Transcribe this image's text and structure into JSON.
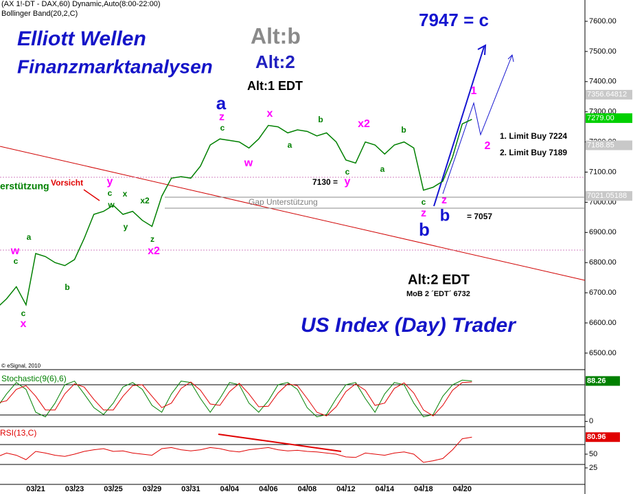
{
  "header": [
    "(AX 1!-DT - DAX,60) Dynamic,Auto(8:00-22:00)",
    "Bollinger Band(20,2,C)"
  ],
  "chart_data": [
    {
      "type": "line",
      "title": "Elliott Wellen",
      "categories": [
        null,
        null,
        null,
        null,
        "03/21",
        null,
        null,
        null,
        "03/23",
        null,
        null,
        null,
        "03/25",
        null,
        null,
        null,
        "03/29",
        null,
        null,
        null,
        "03/31",
        null,
        null,
        null,
        "04/04",
        null,
        null,
        null,
        "04/06",
        null,
        null,
        null,
        "04/08",
        null,
        null,
        null,
        "04/12",
        null,
        null,
        null,
        "04/14",
        null,
        null,
        null,
        "04/18",
        null,
        null,
        null,
        "04/20",
        null
      ],
      "series": [
        {
          "color": "#008000",
          "values": [
            6650,
            6680,
            6720,
            6660,
            6830,
            6820,
            6800,
            6790,
            6810,
            6880,
            6960,
            6970,
            6990,
            6960,
            6970,
            6940,
            6920,
            7020,
            7080,
            7085,
            7080,
            7120,
            7190,
            7210,
            7205,
            7200,
            7180,
            7210,
            7255,
            7250,
            7230,
            7240,
            7235,
            7220,
            7230,
            7200,
            7140,
            7130,
            7200,
            7190,
            7160,
            7190,
            7200,
            7180,
            7040,
            7050,
            7070,
            7150,
            7260,
            7275
          ]
        }
      ],
      "ylim": [
        6447.4,
        7670.6
      ],
      "yticks": [
        {
          "value": 6500,
          "label": "6500.00"
        },
        {
          "value": 6600,
          "label": "6600.00"
        },
        {
          "value": 6700,
          "label": "6700.00"
        },
        {
          "value": 6800,
          "label": "6800.00"
        },
        {
          "value": 6900,
          "label": "6900.00"
        },
        {
          "value": 7000,
          "label": "7000.00"
        },
        {
          "value": 7100,
          "label": "7100.00"
        },
        {
          "value": 7200,
          "label": "7200.00"
        },
        {
          "value": 7300,
          "label": "7300.00"
        },
        {
          "value": 7400,
          "label": "7400.00"
        },
        {
          "value": 7500,
          "label": "7500.00"
        },
        {
          "value": 7600,
          "label": "7600.00"
        }
      ],
      "price_tags": [
        {
          "value": 7356.64812,
          "label": "7356.64812",
          "color": "#c8c8c8"
        },
        {
          "value": 7279,
          "label": "7279.00",
          "color": "#00d000"
        },
        {
          "value": 7188.85,
          "label": "7188.85",
          "color": "#c8c8c8"
        },
        {
          "value": 7021.05188,
          "label": "7021.05188",
          "color": "#c8c8c8"
        }
      ],
      "annotations": [
        {
          "text": "Finanzmarktanalysen",
          "color": "#1414c8"
        },
        {
          "text": "Alt:b",
          "color": "#8a8a8a"
        },
        {
          "text": "Alt:2",
          "color": "#2020c0"
        },
        {
          "text": "Alt:1 EDT",
          "color": "#000000"
        },
        {
          "text": "7947 = c",
          "color": "#1414d0"
        },
        {
          "text": "1. Limit Buy 7224",
          "color": "#000000"
        },
        {
          "text": "2. Limit Buy 7189",
          "color": "#000000"
        },
        {
          "text": "7130 =",
          "color": "#000000"
        },
        {
          "text": "= 7057",
          "color": "#000000"
        },
        {
          "text": "Gap Unterstützung",
          "color": "#808080"
        },
        {
          "text": "erstützung",
          "color": "#008000"
        },
        {
          "text": "Vorsicht",
          "color": "#e00000"
        },
        {
          "text": "Alt:2 EDT",
          "color": "#000000"
        },
        {
          "text": "MoB 2 ´EDT´ 6732",
          "color": "#000000"
        },
        {
          "text": "US Index (Day) Trader",
          "color": "#1414c8"
        },
        {
          "text": "© eSignal, 2010",
          "color": "#000000"
        }
      ],
      "waves": [
        "a",
        "z",
        "c",
        "x",
        "w",
        "a",
        "b",
        "x2",
        "c",
        "y",
        "b",
        "a",
        "c",
        "z",
        "b",
        "z",
        "b",
        "1",
        "2",
        "y",
        "c",
        "x",
        "x2",
        "w",
        "y",
        "z",
        "x2",
        "a",
        "w",
        "c",
        "b",
        "c",
        "x"
      ]
    },
    {
      "type": "line",
      "title": "Stochastic(9(6),6)",
      "series": [
        {
          "color": "#008000",
          "values": [
            30,
            60,
            85,
            70,
            20,
            10,
            40,
            80,
            88,
            60,
            30,
            15,
            40,
            75,
            85,
            70,
            35,
            20,
            60,
            88,
            85,
            50,
            20,
            50,
            85,
            80,
            40,
            20,
            45,
            80,
            85,
            70,
            30,
            10,
            15,
            50,
            80,
            85,
            50,
            20,
            60,
            85,
            80,
            40,
            10,
            15,
            55,
            80,
            90,
            88.26
          ],
          "last_label": "88.26"
        },
        {
          "color": "#e00000",
          "values": [
            40,
            45,
            70,
            78,
            55,
            25,
            25,
            60,
            82,
            75,
            48,
            25,
            25,
            55,
            78,
            80,
            55,
            30,
            40,
            72,
            86,
            68,
            38,
            35,
            65,
            83,
            60,
            32,
            33,
            62,
            82,
            78,
            50,
            20,
            12,
            32,
            65,
            82,
            68,
            35,
            40,
            72,
            84,
            62,
            25,
            12,
            35,
            68,
            85,
            86
          ]
        }
      ],
      "ylim": [
        -10,
        110
      ],
      "yticks": [
        0
      ]
    },
    {
      "type": "line",
      "title": "RSI(13,C)",
      "series": [
        {
          "color": "#e00000",
          "values": [
            45,
            52,
            48,
            40,
            55,
            52,
            48,
            46,
            50,
            55,
            58,
            60,
            55,
            56,
            52,
            50,
            48,
            60,
            62,
            58,
            56,
            58,
            62,
            60,
            56,
            54,
            58,
            60,
            62,
            58,
            56,
            57,
            55,
            54,
            52,
            50,
            45,
            44,
            52,
            50,
            48,
            52,
            54,
            50,
            35,
            38,
            42,
            58,
            78,
            80.96
          ],
          "last_label": "80.96"
        }
      ],
      "ylim": [
        -5,
        95
      ],
      "yticks": [
        50,
        25
      ]
    }
  ]
}
